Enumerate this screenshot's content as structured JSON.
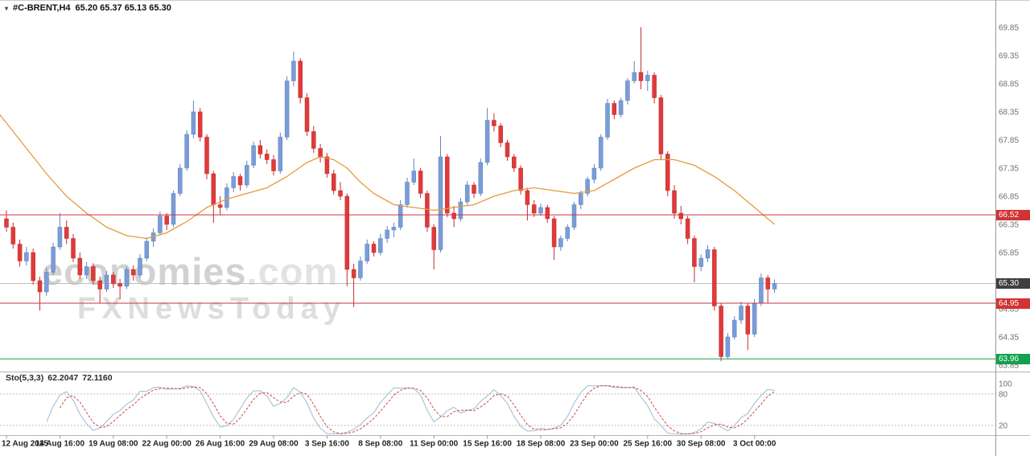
{
  "header": {
    "symbol": "#C-BRENT,H4",
    "ohlc": "65.20 65.37 65.13 65.30"
  },
  "watermark": {
    "brand": "economies",
    "tld": ".com",
    "line2": "FXNewsToday"
  },
  "indicator": {
    "name": "Sto(5,3,3)",
    "k": "62.2047",
    "d": "72.1160"
  },
  "colors": {
    "up": "#7b9cd6",
    "up_stroke": "#5f84bf",
    "down": "#e03a3a",
    "down_stroke": "#c22f2f",
    "ma": "#e79a3a",
    "sto_k": "#a3c0da",
    "sto_d": "#cf4646",
    "level_red": "#cd3344",
    "level_green": "#16a34a",
    "current_grey": "#c0c0c0",
    "badge_red": "#d03434",
    "badge_green": "#12a14e",
    "badge_dark": "#3f3f3f",
    "separator": "#b5b5b5",
    "axis_line": "#9a9a9a",
    "sto_level_dash": "#bdbdbd"
  },
  "price_axis": {
    "labels": [
      69.85,
      69.35,
      68.85,
      68.35,
      67.85,
      67.35,
      66.85,
      66.35,
      65.85,
      64.85,
      64.35,
      63.85
    ],
    "badges": [
      {
        "label": "66.52",
        "price": 66.52,
        "color": "#d03434"
      },
      {
        "label": "65.30",
        "price": 65.3,
        "color": "#3f3f3f"
      },
      {
        "label": "64.95",
        "price": 64.95,
        "color": "#d03434"
      },
      {
        "label": "63.96",
        "price": 63.96,
        "color": "#12a14e"
      }
    ]
  },
  "sto_axis": {
    "labels": [
      100,
      80,
      20
    ]
  },
  "chart_data": {
    "type": "candlestick",
    "title": "#C-BRENT,H4",
    "symbol": "#C-BRENT",
    "timeframe": "H4",
    "last_ohlc": [
      65.2,
      65.37,
      65.13,
      65.3
    ],
    "ylim": [
      63.7,
      70.1
    ],
    "grid": false,
    "hlines": [
      {
        "price": 65.3,
        "color": "#c0c0c0",
        "role": "current-price"
      },
      {
        "price": 66.52,
        "color": "#cd3344",
        "role": "resistance"
      },
      {
        "price": 64.95,
        "color": "#cd3344",
        "role": "support"
      },
      {
        "price": 63.96,
        "color": "#16a34a",
        "role": "support"
      }
    ],
    "candles": [
      [
        66.45,
        66.6,
        66.22,
        66.3
      ],
      [
        66.3,
        66.38,
        65.92,
        66.0
      ],
      [
        66.0,
        66.08,
        65.6,
        65.7
      ],
      [
        65.7,
        65.95,
        65.62,
        65.85
      ],
      [
        65.85,
        65.92,
        65.28,
        65.35
      ],
      [
        65.35,
        65.42,
        64.82,
        65.15
      ],
      [
        65.15,
        65.58,
        65.08,
        65.5
      ],
      [
        65.5,
        66.02,
        65.45,
        65.95
      ],
      [
        65.95,
        66.55,
        65.9,
        66.3
      ],
      [
        66.3,
        66.42,
        66.0,
        66.1
      ],
      [
        66.1,
        66.18,
        65.68,
        65.75
      ],
      [
        65.75,
        65.85,
        65.38,
        65.45
      ],
      [
        65.45,
        65.68,
        65.38,
        65.6
      ],
      [
        65.6,
        65.66,
        65.28,
        65.35
      ],
      [
        65.35,
        65.42,
        64.95,
        65.2
      ],
      [
        65.2,
        65.52,
        65.15,
        65.45
      ],
      [
        65.45,
        65.5,
        65.22,
        65.3
      ],
      [
        65.3,
        65.38,
        65.02,
        65.25
      ],
      [
        65.25,
        65.6,
        65.2,
        65.55
      ],
      [
        65.55,
        65.62,
        65.35,
        65.45
      ],
      [
        65.45,
        65.82,
        65.4,
        65.75
      ],
      [
        65.75,
        66.12,
        65.7,
        66.05
      ],
      [
        66.05,
        66.28,
        65.95,
        66.2
      ],
      [
        66.2,
        66.58,
        66.15,
        66.5
      ],
      [
        66.5,
        66.55,
        66.25,
        66.35
      ],
      [
        66.35,
        66.95,
        66.3,
        66.9
      ],
      [
        66.9,
        67.42,
        66.85,
        67.35
      ],
      [
        67.35,
        68.02,
        67.3,
        67.95
      ],
      [
        67.95,
        68.55,
        67.88,
        68.35
      ],
      [
        68.35,
        68.42,
        67.82,
        67.9
      ],
      [
        67.9,
        67.95,
        67.15,
        67.25
      ],
      [
        67.25,
        67.3,
        66.38,
        66.7
      ],
      [
        66.7,
        66.85,
        66.52,
        66.65
      ],
      [
        66.65,
        67.08,
        66.6,
        67.0
      ],
      [
        67.0,
        67.28,
        66.92,
        67.2
      ],
      [
        67.2,
        67.25,
        66.95,
        67.05
      ],
      [
        67.05,
        67.48,
        67.0,
        67.4
      ],
      [
        67.4,
        67.82,
        67.35,
        67.75
      ],
      [
        67.75,
        67.85,
        67.52,
        67.6
      ],
      [
        67.6,
        67.68,
        67.42,
        67.5
      ],
      [
        67.5,
        67.58,
        67.22,
        67.3
      ],
      [
        67.3,
        67.98,
        67.25,
        67.9
      ],
      [
        67.9,
        68.98,
        67.85,
        68.9
      ],
      [
        68.9,
        69.42,
        68.8,
        69.25
      ],
      [
        69.25,
        69.3,
        68.5,
        68.6
      ],
      [
        68.6,
        68.68,
        67.92,
        68.0
      ],
      [
        68.0,
        68.1,
        67.62,
        67.7
      ],
      [
        67.7,
        67.78,
        67.45,
        67.55
      ],
      [
        67.55,
        67.62,
        67.18,
        67.25
      ],
      [
        67.25,
        67.32,
        66.88,
        66.95
      ],
      [
        66.95,
        67.1,
        66.78,
        66.85
      ],
      [
        66.85,
        66.9,
        65.25,
        65.55
      ],
      [
        65.55,
        65.65,
        64.88,
        65.4
      ],
      [
        65.4,
        65.78,
        65.35,
        65.7
      ],
      [
        65.7,
        66.08,
        65.65,
        66.0
      ],
      [
        66.0,
        66.05,
        65.78,
        65.85
      ],
      [
        65.85,
        66.18,
        65.8,
        66.1
      ],
      [
        66.1,
        66.32,
        66.02,
        66.25
      ],
      [
        66.25,
        66.38,
        66.12,
        66.3
      ],
      [
        66.3,
        66.78,
        66.25,
        66.7
      ],
      [
        66.7,
        67.18,
        66.65,
        67.1
      ],
      [
        67.1,
        67.52,
        67.05,
        67.3
      ],
      [
        67.3,
        67.35,
        66.82,
        66.9
      ],
      [
        66.9,
        66.95,
        66.22,
        66.3
      ],
      [
        66.3,
        66.35,
        65.55,
        65.9
      ],
      [
        65.9,
        67.92,
        65.85,
        67.55
      ],
      [
        67.55,
        67.6,
        66.48,
        66.55
      ],
      [
        66.55,
        66.68,
        66.3,
        66.45
      ],
      [
        66.45,
        66.82,
        66.4,
        66.75
      ],
      [
        66.75,
        67.12,
        66.7,
        67.05
      ],
      [
        67.05,
        67.1,
        66.82,
        66.9
      ],
      [
        66.9,
        67.52,
        66.85,
        67.45
      ],
      [
        67.45,
        68.42,
        67.4,
        68.2
      ],
      [
        68.2,
        68.32,
        68.0,
        68.1
      ],
      [
        68.1,
        68.15,
        67.72,
        67.8
      ],
      [
        67.8,
        67.85,
        67.48,
        67.55
      ],
      [
        67.55,
        67.6,
        67.28,
        67.35
      ],
      [
        67.35,
        67.4,
        66.88,
        66.95
      ],
      [
        66.95,
        67.0,
        66.42,
        66.7
      ],
      [
        66.7,
        66.78,
        66.48,
        66.55
      ],
      [
        66.55,
        66.72,
        66.5,
        66.65
      ],
      [
        66.65,
        66.7,
        66.38,
        66.45
      ],
      [
        66.45,
        66.5,
        65.72,
        65.95
      ],
      [
        65.95,
        66.15,
        65.88,
        66.1
      ],
      [
        66.1,
        66.35,
        66.05,
        66.3
      ],
      [
        66.3,
        66.75,
        66.25,
        66.7
      ],
      [
        66.7,
        66.95,
        66.62,
        66.9
      ],
      [
        66.9,
        67.2,
        66.85,
        67.15
      ],
      [
        67.15,
        67.42,
        67.08,
        67.35
      ],
      [
        67.35,
        67.95,
        67.3,
        67.9
      ],
      [
        67.9,
        68.58,
        67.85,
        68.5
      ],
      [
        68.5,
        68.55,
        68.22,
        68.3
      ],
      [
        68.3,
        68.6,
        68.25,
        68.55
      ],
      [
        68.55,
        68.95,
        68.48,
        68.9
      ],
      [
        68.9,
        69.25,
        68.85,
        69.05
      ],
      [
        69.05,
        69.85,
        68.75,
        68.9
      ],
      [
        68.9,
        69.08,
        68.72,
        69.0
      ],
      [
        69.0,
        69.05,
        68.5,
        68.6
      ],
      [
        68.6,
        68.65,
        67.5,
        67.6
      ],
      [
        67.6,
        67.65,
        66.85,
        66.95
      ],
      [
        66.95,
        67.05,
        66.45,
        66.55
      ],
      [
        66.55,
        66.68,
        66.35,
        66.45
      ],
      [
        66.45,
        66.5,
        66.0,
        66.1
      ],
      [
        66.1,
        66.15,
        65.32,
        65.6
      ],
      [
        65.6,
        65.82,
        65.52,
        65.75
      ],
      [
        65.75,
        65.98,
        65.68,
        65.9
      ],
      [
        65.9,
        65.95,
        64.82,
        64.9
      ],
      [
        64.9,
        64.95,
        63.92,
        64.0
      ],
      [
        64.0,
        64.42,
        63.96,
        64.35
      ],
      [
        64.35,
        64.72,
        64.3,
        64.65
      ],
      [
        64.65,
        64.98,
        64.58,
        64.9
      ],
      [
        64.9,
        64.95,
        64.12,
        64.4
      ],
      [
        64.4,
        65.02,
        64.35,
        64.95
      ],
      [
        64.95,
        65.48,
        64.9,
        65.4
      ],
      [
        65.4,
        65.45,
        64.95,
        65.2
      ],
      [
        65.2,
        65.37,
        65.13,
        65.3
      ]
    ],
    "ma": {
      "name": "moving-average",
      "color": "#e79a3a",
      "points": [
        [
          -1,
          68.3
        ],
        [
          3,
          67.7
        ],
        [
          6,
          67.25
        ],
        [
          9,
          66.85
        ],
        [
          12,
          66.55
        ],
        [
          15,
          66.3
        ],
        [
          18,
          66.15
        ],
        [
          21,
          66.1
        ],
        [
          24,
          66.2
        ],
        [
          27,
          66.4
        ],
        [
          30,
          66.65
        ],
        [
          33,
          66.8
        ],
        [
          36,
          66.9
        ],
        [
          39,
          67.0
        ],
        [
          42,
          67.2
        ],
        [
          45,
          67.45
        ],
        [
          47,
          67.55
        ],
        [
          49,
          67.5
        ],
        [
          51,
          67.35
        ],
        [
          53,
          67.1
        ],
        [
          55,
          66.9
        ],
        [
          58,
          66.7
        ],
        [
          61,
          66.65
        ],
        [
          64,
          66.6
        ],
        [
          67,
          66.65
        ],
        [
          70,
          66.7
        ],
        [
          73,
          66.85
        ],
        [
          76,
          66.95
        ],
        [
          79,
          67.0
        ],
        [
          82,
          66.95
        ],
        [
          85,
          66.9
        ],
        [
          88,
          66.95
        ],
        [
          91,
          67.15
        ],
        [
          94,
          67.35
        ],
        [
          97,
          67.5
        ],
        [
          100,
          67.5
        ],
        [
          103,
          67.4
        ],
        [
          106,
          67.2
        ],
        [
          109,
          66.95
        ],
        [
          112,
          66.65
        ],
        [
          115,
          66.35
        ]
      ]
    },
    "stochastic": {
      "params": "5,3,3",
      "k_last": 62.2047,
      "d_last": 72.116,
      "levels": [
        80,
        20
      ],
      "range": [
        0,
        100
      ]
    },
    "x_labels": [
      {
        "bar": 0,
        "label": "12 Aug 2025"
      },
      {
        "bar": 8,
        "label": "14 Aug 16:00"
      },
      {
        "bar": 16,
        "label": "19 Aug 08:00"
      },
      {
        "bar": 24,
        "label": "22 Aug 00:00"
      },
      {
        "bar": 32,
        "label": "26 Aug 16:00"
      },
      {
        "bar": 40,
        "label": "29 Aug 08:00"
      },
      {
        "bar": 48,
        "label": "3 Sep 16:00"
      },
      {
        "bar": 56,
        "label": "8 Sep 08:00"
      },
      {
        "bar": 64,
        "label": "11 Sep 00:00"
      },
      {
        "bar": 72,
        "label": "15 Sep 16:00"
      },
      {
        "bar": 80,
        "label": "18 Sep 08:00"
      },
      {
        "bar": 88,
        "label": "23 Sep 00:00"
      },
      {
        "bar": 96,
        "label": "25 Sep 16:00"
      },
      {
        "bar": 104,
        "label": "30 Sep 08:00"
      },
      {
        "bar": 112,
        "label": "3 Oct 00:00"
      }
    ]
  }
}
